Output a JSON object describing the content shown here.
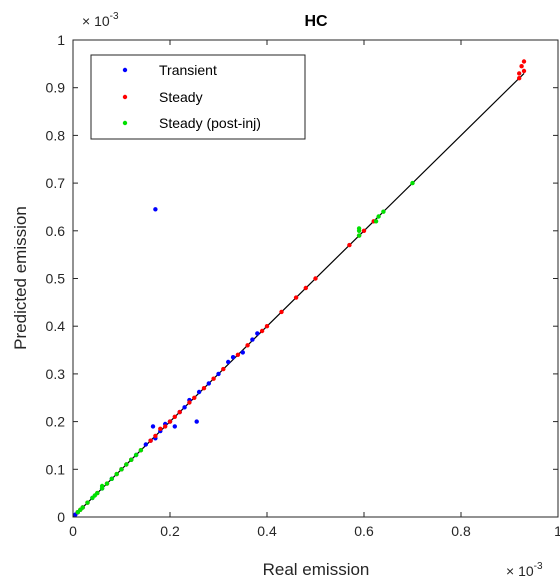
{
  "chart_data": {
    "type": "scatter",
    "title": "HC",
    "xlabel": "Real emission",
    "ylabel": "Predicted emission",
    "xlim": [
      0,
      1
    ],
    "ylim": [
      0,
      1
    ],
    "x_ticks": [
      "0",
      "0.2",
      "0.4",
      "0.6",
      "0.8",
      "1"
    ],
    "y_ticks": [
      "0",
      "0.1",
      "0.2",
      "0.3",
      "0.4",
      "0.5",
      "0.6",
      "0.7",
      "0.8",
      "0.9",
      "1"
    ],
    "x_tick_values": [
      0,
      0.2,
      0.4,
      0.6,
      0.8,
      1
    ],
    "y_tick_values": [
      0,
      0.1,
      0.2,
      0.3,
      0.4,
      0.5,
      0.6,
      0.7,
      0.8,
      0.9,
      1
    ],
    "x_exponent": {
      "base": "× 10",
      "power": "-3"
    },
    "y_exponent": {
      "base": "× 10",
      "power": "-3"
    },
    "grid": false,
    "legend_position": "top-left",
    "reference_line": {
      "from": [
        0,
        0
      ],
      "to": [
        0.93,
        0.93
      ],
      "color": "#000000"
    },
    "series": [
      {
        "name": "Transient",
        "color": "#0000ff",
        "points": [
          [
            0.17,
            0.645
          ],
          [
            0.165,
            0.19
          ],
          [
            0.255,
            0.2
          ],
          [
            0.21,
            0.19
          ],
          [
            0.23,
            0.23
          ],
          [
            0.32,
            0.325
          ],
          [
            0.33,
            0.335
          ],
          [
            0.35,
            0.345
          ],
          [
            0.37,
            0.372
          ],
          [
            0.38,
            0.385
          ],
          [
            0.3,
            0.3
          ],
          [
            0.28,
            0.28
          ],
          [
            0.26,
            0.262
          ],
          [
            0.24,
            0.245
          ],
          [
            0.22,
            0.22
          ],
          [
            0.2,
            0.2
          ],
          [
            0.18,
            0.18
          ],
          [
            0.16,
            0.16
          ],
          [
            0.15,
            0.152
          ],
          [
            0.13,
            0.13
          ],
          [
            0.12,
            0.12
          ],
          [
            0.1,
            0.1
          ],
          [
            0.08,
            0.08
          ],
          [
            0.06,
            0.06
          ],
          [
            0.04,
            0.04
          ],
          [
            0.02,
            0.02
          ],
          [
            0.01,
            0.01
          ],
          [
            0.005,
            0.005
          ],
          [
            0.17,
            0.165
          ],
          [
            0.19,
            0.195
          ]
        ]
      },
      {
        "name": "Steady",
        "color": "#ff0000",
        "points": [
          [
            0.92,
            0.93
          ],
          [
            0.93,
            0.935
          ],
          [
            0.925,
            0.945
          ],
          [
            0.93,
            0.955
          ],
          [
            0.92,
            0.92
          ],
          [
            0.57,
            0.57
          ],
          [
            0.59,
            0.59
          ],
          [
            0.5,
            0.5
          ],
          [
            0.48,
            0.48
          ],
          [
            0.46,
            0.46
          ],
          [
            0.43,
            0.43
          ],
          [
            0.4,
            0.4
          ],
          [
            0.39,
            0.39
          ],
          [
            0.36,
            0.36
          ],
          [
            0.34,
            0.34
          ],
          [
            0.31,
            0.31
          ],
          [
            0.29,
            0.29
          ],
          [
            0.27,
            0.27
          ],
          [
            0.25,
            0.25
          ],
          [
            0.24,
            0.24
          ],
          [
            0.22,
            0.22
          ],
          [
            0.21,
            0.21
          ],
          [
            0.2,
            0.2
          ],
          [
            0.19,
            0.19
          ],
          [
            0.18,
            0.185
          ],
          [
            0.17,
            0.17
          ],
          [
            0.16,
            0.16
          ],
          [
            0.14,
            0.14
          ],
          [
            0.12,
            0.12
          ],
          [
            0.11,
            0.11
          ],
          [
            0.1,
            0.1
          ],
          [
            0.09,
            0.09
          ],
          [
            0.07,
            0.07
          ],
          [
            0.05,
            0.05
          ],
          [
            0.03,
            0.03
          ],
          [
            0.02,
            0.02
          ],
          [
            0.01,
            0.01
          ],
          [
            0.015,
            0.015
          ],
          [
            0.62,
            0.62
          ],
          [
            0.6,
            0.6
          ]
        ]
      },
      {
        "name": "Steady (post-inj)",
        "color": "#00e000",
        "points": [
          [
            0.7,
            0.7
          ],
          [
            0.64,
            0.64
          ],
          [
            0.63,
            0.63
          ],
          [
            0.625,
            0.62
          ],
          [
            0.59,
            0.605
          ],
          [
            0.59,
            0.6
          ],
          [
            0.59,
            0.59
          ],
          [
            0.14,
            0.14
          ],
          [
            0.13,
            0.13
          ],
          [
            0.12,
            0.12
          ],
          [
            0.11,
            0.11
          ],
          [
            0.1,
            0.1
          ],
          [
            0.09,
            0.09
          ],
          [
            0.08,
            0.08
          ],
          [
            0.07,
            0.07
          ],
          [
            0.06,
            0.06
          ],
          [
            0.05,
            0.05
          ],
          [
            0.045,
            0.045
          ],
          [
            0.04,
            0.04
          ],
          [
            0.03,
            0.03
          ],
          [
            0.02,
            0.02
          ],
          [
            0.015,
            0.015
          ],
          [
            0.01,
            0.01
          ],
          [
            0.06,
            0.065
          ]
        ]
      }
    ]
  }
}
